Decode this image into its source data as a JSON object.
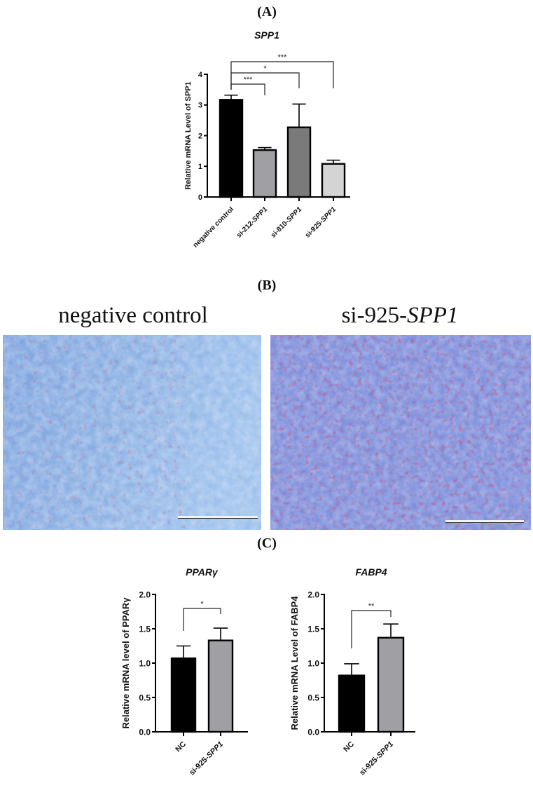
{
  "panels": {
    "A": {
      "label": "(A)"
    },
    "B": {
      "label": "(B)"
    },
    "C": {
      "label": "(C)"
    }
  },
  "micrographs": {
    "left": {
      "title": "negative control",
      "title_italic": ""
    },
    "right": {
      "title": "si-925-",
      "title_italic": "SPP1"
    }
  },
  "chart_data": [
    {
      "type": "bar",
      "panel": "A",
      "title": "SPP1",
      "xlabel": "",
      "ylabel": "Relative mRNA Level of SPP1",
      "ylim": [
        0,
        4
      ],
      "yticks": [
        "0",
        "1",
        "2",
        "3",
        "4"
      ],
      "grid": false,
      "categories": [
        "negative control",
        "si-212-SPP1",
        "si-810-SPP1",
        "si-925-SPP1"
      ],
      "values": [
        3.17,
        1.53,
        2.27,
        1.08
      ],
      "errors": [
        0.15,
        0.08,
        0.76,
        0.12
      ],
      "colors": [
        "#000000",
        "#a0a0a4",
        "#7a7a7a",
        "#d4d4d4"
      ],
      "significance": [
        {
          "from": "negative control",
          "to": "si-212-SPP1",
          "label": "***"
        },
        {
          "from": "negative control",
          "to": "si-810-SPP1",
          "label": "*"
        },
        {
          "from": "negative control",
          "to": "si-925-SPP1",
          "label": "***"
        }
      ]
    },
    {
      "type": "bar",
      "panel": "C-left",
      "title": "PPARγ",
      "xlabel": "",
      "ylabel": "Relative mRNA level of PPARγ",
      "ylim": [
        0,
        2.0
      ],
      "yticks": [
        "0.0",
        "0.5",
        "1.0",
        "1.5",
        "2.0"
      ],
      "grid": false,
      "categories": [
        "NC",
        "si-925-SPP1"
      ],
      "values": [
        1.07,
        1.33
      ],
      "errors": [
        0.18,
        0.18
      ],
      "colors": [
        "#000000",
        "#a0a0a4"
      ],
      "significance": [
        {
          "from": "NC",
          "to": "si-925-SPP1",
          "label": "*"
        }
      ]
    },
    {
      "type": "bar",
      "panel": "C-right",
      "title": "FABP4",
      "xlabel": "",
      "ylabel": "Relative mRNA Level of  FABP4",
      "ylim": [
        0,
        2.0
      ],
      "yticks": [
        "0.0",
        "0.5",
        "1.0",
        "1.5",
        "2.0"
      ],
      "grid": false,
      "categories": [
        "NC",
        "si-925-SPP1"
      ],
      "values": [
        0.82,
        1.37
      ],
      "errors": [
        0.17,
        0.2
      ],
      "colors": [
        "#000000",
        "#a0a0a4"
      ],
      "significance": [
        {
          "from": "NC",
          "to": "si-925-SPP1",
          "label": "**"
        }
      ]
    }
  ]
}
